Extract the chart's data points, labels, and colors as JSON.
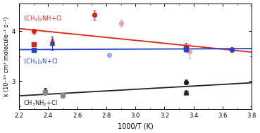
{
  "xlabel": "1000/T (K)",
  "ylabel": "k (10⁻¹⁰ cm³ molecule⁻¹ s⁻¹)",
  "xlim": [
    2.2,
    3.8
  ],
  "ylim": [
    2.45,
    4.55
  ],
  "yticks": [
    3.0,
    4.0
  ],
  "xticks": [
    2.2,
    2.4,
    2.6,
    2.8,
    3.0,
    3.2,
    3.4,
    3.6,
    3.8
  ],
  "red_label": "(CH$_3$)$_2$NH+Cl",
  "blue_label": "(CH$_3$)$_3$N+Cl",
  "black_label": "CH$_3$NH$_2$+Cl",
  "red_circles_dark": {
    "x": [
      2.3,
      2.72,
      3.35,
      3.66
    ],
    "y": [
      4.0,
      4.32,
      3.68,
      3.62
    ],
    "yerr": [
      0.05,
      0.09,
      0.08,
      0.0
    ]
  },
  "red_circles_light": {
    "x": [
      2.9,
      3.37
    ],
    "y": [
      4.15,
      3.6
    ],
    "yerr": [
      0.07,
      0.14
    ]
  },
  "red_squares": {
    "x": [
      2.3,
      3.35
    ],
    "y": [
      3.74,
      3.68
    ],
    "yerr": [
      0.04,
      0.04
    ]
  },
  "red_triangles": {
    "x": [
      2.43,
      3.35
    ],
    "y": [
      3.81,
      3.65
    ],
    "yerr": [
      0.04,
      0.05
    ]
  },
  "blue_circles_dark": {
    "x": [
      2.3,
      3.35,
      3.66
    ],
    "y": [
      3.62,
      3.63,
      3.64
    ],
    "yerr": [
      0.0,
      0.0,
      0.0
    ]
  },
  "blue_circles_light": {
    "x": [
      2.82,
      3.35
    ],
    "y": [
      3.52,
      3.62
    ],
    "yerr": [
      0.0,
      0.0
    ]
  },
  "blue_squares": {
    "x": [
      2.3,
      3.35
    ],
    "y": [
      3.62,
      3.64
    ],
    "yerr": [
      0.0,
      0.0
    ]
  },
  "blue_triangles": {
    "x": [
      2.43,
      3.35
    ],
    "y": [
      3.76,
      3.65
    ],
    "yerr": [
      0.13,
      0.05
    ]
  },
  "black_circles": {
    "x": [
      2.38,
      3.35
    ],
    "y": [
      2.8,
      2.98
    ],
    "yerr": [
      0.06,
      0.05
    ]
  },
  "black_squares": {
    "x": [
      2.38,
      2.5,
      3.35
    ],
    "y": [
      2.78,
      2.72,
      2.77
    ],
    "yerr": [
      0.05,
      0.05,
      0.04
    ]
  },
  "black_triangles": {
    "x": [
      3.35
    ],
    "y": [
      2.78
    ],
    "yerr": [
      0.04
    ]
  },
  "red_line_x": [
    2.2,
    3.8
  ],
  "red_line_y": [
    4.05,
    3.58
  ],
  "blue_line_x": [
    2.2,
    3.8
  ],
  "blue_line_y": [
    3.63,
    3.65
  ],
  "black_line_x": [
    2.2,
    3.8
  ],
  "black_line_y": [
    2.71,
    2.97
  ],
  "red_color": "#dd2211",
  "red_light_color": "#f5a0a0",
  "blue_color": "#2244cc",
  "blue_light_color": "#9aade8",
  "black_color": "#222222",
  "gray_color": "#888888"
}
